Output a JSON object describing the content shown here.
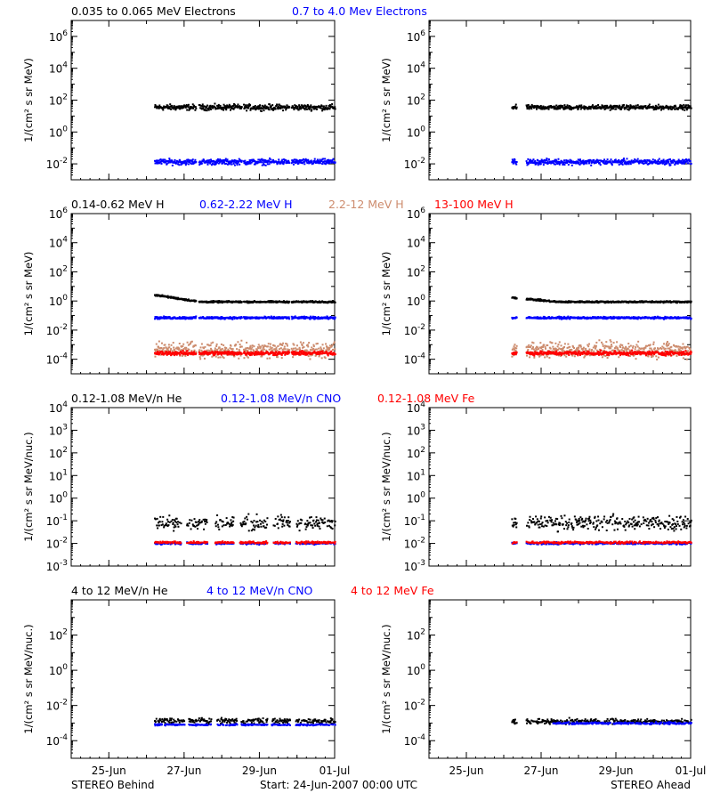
{
  "figure": {
    "footer_left": "STEREO Behind",
    "footer_center": "Start: 24-Jun-2007 00:00 UTC",
    "footer_right": "STEREO Ahead",
    "x_tick_labels": [
      "25-Jun",
      "27-Jun",
      "29-Jun",
      "01-Jul"
    ]
  },
  "chart_data": [
    {
      "type": "scatter",
      "row": 1,
      "spacecraft": "STEREO Behind",
      "legend": [
        {
          "label": "0.035 to 0.065 MeV Electrons",
          "color": "#000000"
        },
        {
          "label": "0.7 to 4.0 Mev Electrons",
          "color": "#0000ff"
        }
      ],
      "ylabel": "1/(cm² s sr MeV)",
      "yscale": "log",
      "ylim_exp": [
        -3,
        7
      ],
      "ytick_exps": [
        -2,
        0,
        2,
        4,
        6
      ],
      "x_unit": "days since 24-Jun-2007 00:00 UTC",
      "xlim": [
        0,
        7
      ],
      "data_gaps": [
        [
          3.3,
          3.37
        ],
        [
          4.52,
          4.56
        ],
        [
          5.78,
          5.83
        ]
      ],
      "series": [
        {
          "label": "0.035 to 0.065 MeV Electrons",
          "color": "#000000",
          "x_range": [
            2.2,
            7.0
          ],
          "level": 40,
          "spread_dex": 0.15
        },
        {
          "label": "0.7 to 4.0 Mev Electrons",
          "color": "#0000ff",
          "x_range": [
            2.2,
            7.0
          ],
          "level": 0.015,
          "spread_dex": 0.15
        }
      ]
    },
    {
      "type": "scatter",
      "row": 1,
      "spacecraft": "STEREO Ahead",
      "ylabel": "1/(cm² s sr MeV)",
      "yscale": "log",
      "ylim_exp": [
        -3,
        7
      ],
      "ytick_exps": [
        -2,
        0,
        2,
        4,
        6
      ],
      "x_unit": "days since 24-Jun-2007 00:00 UTC",
      "xlim": [
        0,
        7
      ],
      "data_gaps": [
        [
          2.33,
          2.58
        ]
      ],
      "series": [
        {
          "label": "0.035 to 0.065 MeV Electrons",
          "color": "#000000",
          "x_range": [
            2.2,
            7.0
          ],
          "level": 40,
          "spread_dex": 0.12
        },
        {
          "label": "0.7 to 4.0 Mev Electrons",
          "color": "#0000ff",
          "x_range": [
            2.2,
            7.0
          ],
          "level": 0.015,
          "spread_dex": 0.15
        }
      ]
    },
    {
      "type": "scatter",
      "row": 2,
      "spacecraft": "STEREO Behind",
      "legend": [
        {
          "label": "0.14-0.62 MeV H",
          "color": "#000000"
        },
        {
          "label": "0.62-2.22 MeV H",
          "color": "#0000ff"
        },
        {
          "label": "2.2-12 MeV H",
          "color": "#cd8c6e"
        },
        {
          "label": "13-100 MeV H",
          "color": "#ff0000"
        }
      ],
      "ylabel": "1/(cm² s sr MeV)",
      "yscale": "log",
      "ylim_exp": [
        -5,
        6
      ],
      "ytick_exps": [
        -4,
        -2,
        0,
        2,
        4,
        6
      ],
      "x_unit": "days since 24-Jun-2007 00:00 UTC",
      "xlim": [
        0,
        7
      ],
      "data_gaps": [
        [
          3.3,
          3.37
        ],
        [
          4.52,
          4.56
        ],
        [
          5.78,
          5.83
        ]
      ],
      "series": [
        {
          "label": "0.14-0.62 MeV H",
          "color": "#000000",
          "x_range": [
            2.2,
            7.0
          ],
          "level_start": 3,
          "level_end": 1,
          "spread_dex": 0.05
        },
        {
          "label": "0.62-2.22 MeV H",
          "color": "#0000ff",
          "x_range": [
            2.2,
            7.0
          ],
          "level": 0.08,
          "spread_dex": 0.07
        },
        {
          "label": "2.2-12 MeV H",
          "color": "#cd8c6e",
          "x_range": [
            2.2,
            7.0
          ],
          "level": 0.0005,
          "spread_dex": 0.45
        },
        {
          "label": "13-100 MeV H",
          "color": "#ff0000",
          "x_range": [
            2.2,
            7.0
          ],
          "level": 0.0003,
          "spread_dex": 0.12
        }
      ]
    },
    {
      "type": "scatter",
      "row": 2,
      "spacecraft": "STEREO Ahead",
      "ylabel": "1/(cm² s sr MeV)",
      "yscale": "log",
      "ylim_exp": [
        -5,
        6
      ],
      "ytick_exps": [
        -4,
        -2,
        0,
        2,
        4,
        6
      ],
      "x_unit": "days since 24-Jun-2007 00:00 UTC",
      "xlim": [
        0,
        7
      ],
      "data_gaps": [
        [
          2.33,
          2.58
        ]
      ],
      "series": [
        {
          "label": "0.14-0.62 MeV H",
          "color": "#000000",
          "x_range": [
            2.2,
            7.0
          ],
          "level_start": 2,
          "level_end": 1,
          "spread_dex": 0.05
        },
        {
          "label": "0.62-2.22 MeV H",
          "color": "#0000ff",
          "x_range": [
            2.2,
            7.0
          ],
          "level": 0.08,
          "spread_dex": 0.06
        },
        {
          "label": "2.2-12 MeV H",
          "color": "#cd8c6e",
          "x_range": [
            2.2,
            7.0
          ],
          "level": 0.0005,
          "spread_dex": 0.45
        },
        {
          "label": "13-100 MeV H",
          "color": "#ff0000",
          "x_range": [
            2.2,
            7.0
          ],
          "level": 0.0003,
          "spread_dex": 0.12
        }
      ]
    },
    {
      "type": "scatter",
      "row": 3,
      "spacecraft": "STEREO Behind",
      "legend": [
        {
          "label": "0.12-1.08 MeV/n He",
          "color": "#000000"
        },
        {
          "label": "0.12-1.08 MeV/n CNO",
          "color": "#0000ff"
        },
        {
          "label": "0.12-1.08 MeV Fe",
          "color": "#ff0000"
        }
      ],
      "ylabel": "1/(cm² s sr MeV/nuc.)",
      "yscale": "log",
      "ylim_exp": [
        -3,
        4
      ],
      "ytick_exps": [
        -3,
        -2,
        -1,
        0,
        1,
        2,
        3,
        4
      ],
      "x_unit": "days since 24-Jun-2007 00:00 UTC",
      "xlim": [
        0,
        7
      ],
      "data_gaps": [
        [
          2.9,
          3.05
        ],
        [
          3.6,
          3.8
        ],
        [
          4.3,
          4.45
        ],
        [
          5.2,
          5.35
        ],
        [
          5.8,
          5.95
        ]
      ],
      "series": [
        {
          "label": "0.12-1.08 MeV/n He",
          "color": "#000000",
          "x_range": [
            2.2,
            7.0
          ],
          "level": 0.09,
          "spread_dex": 0.28
        },
        {
          "label": "0.12-1.08 MeV/n CNO",
          "color": "#0000ff",
          "x_range": [
            2.2,
            7.0
          ],
          "level": 0.011,
          "spread_dex": 0.04
        },
        {
          "label": "0.12-1.08 MeV Fe",
          "color": "#ff0000",
          "x_range": [
            2.2,
            7.0
          ],
          "level": 0.012,
          "spread_dex": 0.04
        }
      ]
    },
    {
      "type": "scatter",
      "row": 3,
      "spacecraft": "STEREO Ahead",
      "ylabel": "1/(cm² s sr MeV/nuc.)",
      "yscale": "log",
      "ylim_exp": [
        -3,
        4
      ],
      "ytick_exps": [
        -3,
        -2,
        -1,
        0,
        1,
        2,
        3,
        4
      ],
      "x_unit": "days since 24-Jun-2007 00:00 UTC",
      "xlim": [
        0,
        7
      ],
      "data_gaps": [
        [
          2.33,
          2.58
        ]
      ],
      "series": [
        {
          "label": "0.12-1.08 MeV/n He",
          "color": "#000000",
          "x_range": [
            2.2,
            7.0
          ],
          "level": 0.09,
          "spread_dex": 0.28
        },
        {
          "label": "0.12-1.08 MeV/n CNO",
          "color": "#0000ff",
          "x_range": [
            2.2,
            7.0
          ],
          "level": 0.011,
          "spread_dex": 0.04
        },
        {
          "label": "0.12-1.08 MeV Fe",
          "color": "#ff0000",
          "x_range": [
            2.2,
            7.0
          ],
          "level": 0.012,
          "spread_dex": 0.04
        }
      ]
    },
    {
      "type": "scatter",
      "row": 4,
      "spacecraft": "STEREO Behind",
      "legend": [
        {
          "label": "4 to 12 MeV/n He",
          "color": "#000000"
        },
        {
          "label": "4 to 12 MeV/n CNO",
          "color": "#0000ff"
        },
        {
          "label": "4 to 12 MeV Fe",
          "color": "#ff0000"
        }
      ],
      "ylabel": "1/(cm² s sr MeV/nuc.)",
      "yscale": "log",
      "ylim_exp": [
        -5,
        4
      ],
      "ytick_exps": [
        -4,
        -2,
        0,
        2
      ],
      "x_unit": "days since 24-Jun-2007 00:00 UTC",
      "xlim": [
        0,
        7
      ],
      "data_gaps": [
        [
          3.0,
          3.1
        ],
        [
          3.7,
          3.85
        ],
        [
          4.4,
          4.5
        ],
        [
          5.2,
          5.3
        ],
        [
          5.8,
          5.95
        ]
      ],
      "series": [
        {
          "label": "4 to 12 MeV/n He",
          "color": "#000000",
          "x_range": [
            2.2,
            7.0
          ],
          "level": 0.0015,
          "spread_dex": 0.12
        },
        {
          "label": "4 to 12 MeV/n CNO",
          "color": "#0000ff",
          "x_range": [
            2.2,
            7.0
          ],
          "level": 0.0009,
          "spread_dex": 0.04
        }
      ]
    },
    {
      "type": "scatter",
      "row": 4,
      "spacecraft": "STEREO Ahead",
      "ylabel": "1/(cm² s sr MeV/nuc.)",
      "yscale": "log",
      "ylim_exp": [
        -5,
        4
      ],
      "ytick_exps": [
        -4,
        -2,
        0,
        2
      ],
      "x_unit": "days since 24-Jun-2007 00:00 UTC",
      "xlim": [
        0,
        7
      ],
      "data_gaps": [
        [
          2.33,
          2.58
        ]
      ],
      "series": [
        {
          "label": "4 to 12 MeV/n He",
          "color": "#000000",
          "x_range": [
            2.2,
            7.0
          ],
          "level": 0.0014,
          "spread_dex": 0.12
        },
        {
          "label": "4 to 12 MeV/n CNO",
          "color": "#0000ff",
          "x_range": [
            3.3,
            7.0
          ],
          "level": 0.0011,
          "spread_dex": 0.05
        }
      ]
    }
  ]
}
